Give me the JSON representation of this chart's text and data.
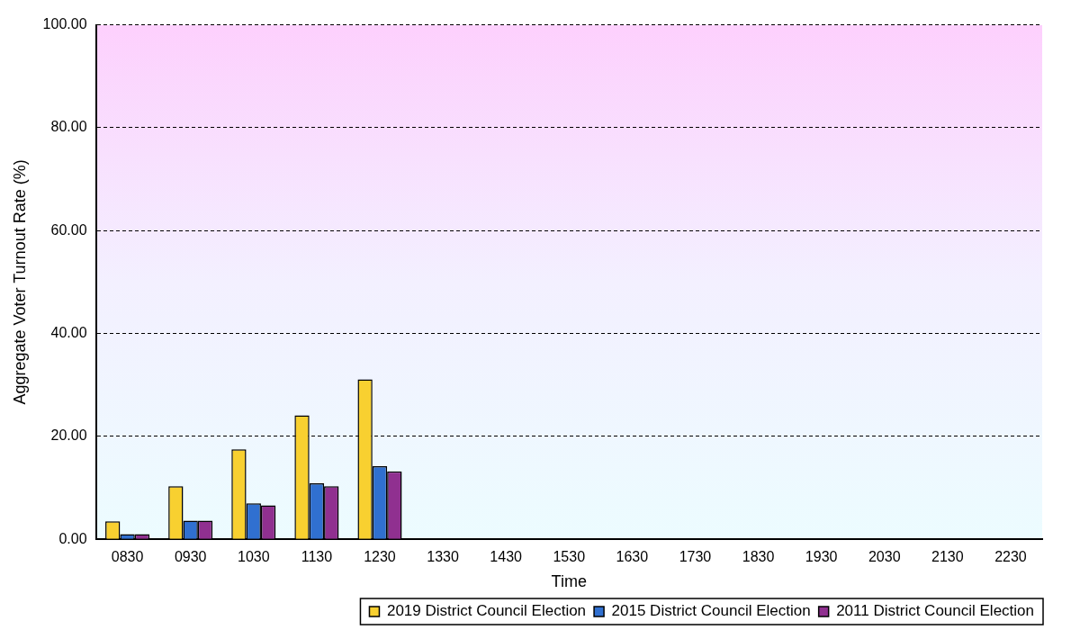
{
  "chart_data": {
    "type": "bar",
    "xlabel": "Time",
    "ylabel": "Aggregate Voter Turnout Rate (%)",
    "categories": [
      "0830",
      "0930",
      "1030",
      "1130",
      "1230",
      "1330",
      "1430",
      "1530",
      "1630",
      "1730",
      "1830",
      "1930",
      "2030",
      "2130",
      "2230"
    ],
    "series": [
      {
        "name": "2019 District Council Election",
        "color": "#f8d030",
        "values": [
          3.5,
          10.3,
          17.5,
          24.1,
          31.1,
          null,
          null,
          null,
          null,
          null,
          null,
          null,
          null,
          null,
          null
        ]
      },
      {
        "name": "2015 District Council Election",
        "color": "#3070d0",
        "values": [
          1.0,
          3.6,
          7.0,
          10.9,
          14.2,
          null,
          null,
          null,
          null,
          null,
          null,
          null,
          null,
          null,
          null
        ]
      },
      {
        "name": "2011 District Council Election",
        "color": "#903090",
        "values": [
          1.0,
          3.6,
          6.6,
          10.3,
          13.2,
          null,
          null,
          null,
          null,
          null,
          null,
          null,
          null,
          null,
          null
        ]
      }
    ],
    "ylim": [
      0,
      100
    ],
    "yticks": [
      {
        "value": 0,
        "label": "0.00"
      },
      {
        "value": 20,
        "label": "20.00"
      },
      {
        "value": 40,
        "label": "40.00"
      },
      {
        "value": 60,
        "label": "60.00"
      },
      {
        "value": 80,
        "label": "80.00"
      },
      {
        "value": 100,
        "label": "100.00"
      }
    ],
    "grid": "y",
    "line_style": "dashed",
    "legend": "bottom right"
  }
}
